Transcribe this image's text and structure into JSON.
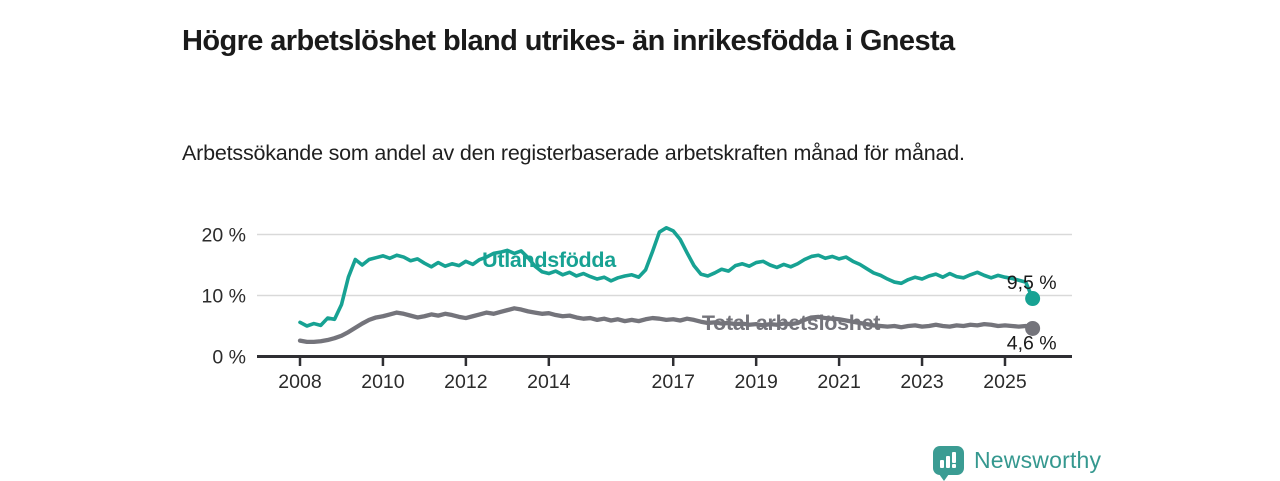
{
  "header": {
    "title": "Högre arbetslöshet bland utrikes- än inrikesfödda i Gnesta",
    "subtitle": "Arbetssökande som andel av den registerbaserade arbetskraften månad för månad."
  },
  "footer": {
    "brand_name": "Newsworthy",
    "logo_icon": "bar-chart-speech-bubble-icon"
  },
  "colors": {
    "series_foreign_teal": "#17a293",
    "series_total_gray": "#74747b",
    "logo_teal": "#3b9c93",
    "brand_text_teal": "#35988f",
    "axis": "#2f2f33",
    "grid": "#d9d9d9",
    "axis_label": "#2b2b2b",
    "value_label": "#1a1a1a"
  },
  "chart_data": {
    "type": "line",
    "unit": "%",
    "grid": "horizontal",
    "legend_position": "inline-labels",
    "points_per_year": 6,
    "x_axis": {
      "start_year": 2008,
      "ticks": [
        2008,
        2010,
        2012,
        2014,
        2017,
        2019,
        2021,
        2023,
        2025
      ]
    },
    "y_axis": {
      "range": [
        0,
        22
      ],
      "ticks": [
        {
          "value": 0,
          "label": "0 %"
        },
        {
          "value": 10,
          "label": "10 %"
        },
        {
          "value": 20,
          "label": "20 %"
        }
      ]
    },
    "series": [
      {
        "name": "Utlandsfödda",
        "color": "#17a293",
        "end_value": 9.5,
        "end_label": "9,5 %",
        "values": [
          5.6,
          5.0,
          5.4,
          5.1,
          6.3,
          6.1,
          8.5,
          13.0,
          15.9,
          15.0,
          15.9,
          16.2,
          16.5,
          16.1,
          16.6,
          16.3,
          15.7,
          16.0,
          15.3,
          14.7,
          15.4,
          14.8,
          15.2,
          14.9,
          15.6,
          15.1,
          15.9,
          16.3,
          16.9,
          17.1,
          17.4,
          16.9,
          17.3,
          16.2,
          14.8,
          13.9,
          13.6,
          14.0,
          13.4,
          13.8,
          13.2,
          13.6,
          13.1,
          12.7,
          13.0,
          12.4,
          12.9,
          13.2,
          13.4,
          13.0,
          14.2,
          17.2,
          20.4,
          21.1,
          20.6,
          19.2,
          17.0,
          14.9,
          13.5,
          13.2,
          13.7,
          14.3,
          14.0,
          14.9,
          15.2,
          14.8,
          15.4,
          15.6,
          15.0,
          14.6,
          15.1,
          14.7,
          15.2,
          15.9,
          16.4,
          16.6,
          16.1,
          16.4,
          16.0,
          16.3,
          15.6,
          15.1,
          14.4,
          13.7,
          13.3,
          12.7,
          12.2,
          12.0,
          12.6,
          13.0,
          12.7,
          13.2,
          13.5,
          13.0,
          13.6,
          13.1,
          12.9,
          13.4,
          13.8,
          13.3,
          12.9,
          13.3,
          13.0,
          12.8,
          12.5,
          12.2,
          9.5
        ]
      },
      {
        "name": "Total arbetslöshet",
        "color": "#74747b",
        "end_value": 4.6,
        "end_label": "4,6 %",
        "values": [
          2.6,
          2.4,
          2.4,
          2.5,
          2.7,
          3.0,
          3.4,
          4.0,
          4.7,
          5.4,
          6.0,
          6.4,
          6.6,
          6.9,
          7.2,
          7.0,
          6.7,
          6.4,
          6.6,
          6.9,
          6.7,
          7.0,
          6.8,
          6.5,
          6.3,
          6.6,
          6.9,
          7.2,
          7.0,
          7.3,
          7.6,
          7.9,
          7.7,
          7.4,
          7.2,
          7.0,
          7.1,
          6.8,
          6.6,
          6.7,
          6.4,
          6.2,
          6.3,
          6.0,
          6.2,
          5.9,
          6.1,
          5.8,
          6.0,
          5.8,
          6.1,
          6.3,
          6.2,
          6.0,
          6.1,
          5.9,
          6.2,
          6.0,
          5.7,
          5.5,
          5.6,
          5.4,
          5.5,
          5.3,
          5.4,
          5.2,
          5.3,
          5.1,
          5.3,
          5.2,
          5.4,
          5.3,
          5.5,
          6.0,
          6.4,
          6.5,
          6.3,
          6.2,
          6.1,
          5.9,
          5.7,
          5.5,
          5.3,
          5.1,
          5.0,
          4.9,
          5.0,
          4.8,
          5.0,
          5.1,
          4.9,
          5.0,
          5.2,
          5.0,
          4.9,
          5.1,
          5.0,
          5.2,
          5.1,
          5.3,
          5.2,
          5.0,
          5.1,
          5.0,
          4.9,
          5.0,
          4.6
        ]
      }
    ]
  }
}
